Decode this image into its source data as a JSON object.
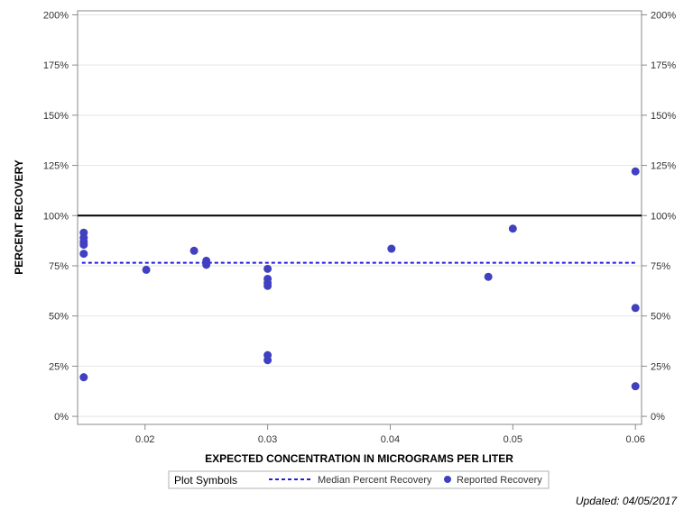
{
  "chart_data": {
    "type": "scatter",
    "title": "",
    "xlabel": "EXPECTED CONCENTRATION IN MICROGRAMS PER LITER",
    "ylabel": "PERCENT RECOVERY",
    "xlim": [
      0.0145,
      0.0605
    ],
    "ylim": [
      -4,
      202
    ],
    "x_ticks": [
      0.02,
      0.03,
      0.04,
      0.05,
      0.06
    ],
    "x_tick_labels": [
      "0.02",
      "0.03",
      "0.04",
      "0.05",
      "0.06"
    ],
    "y_ticks": [
      0,
      25,
      50,
      75,
      100,
      125,
      150,
      175,
      200
    ],
    "y_tick_labels": [
      "0%",
      "25%",
      "50%",
      "75%",
      "100%",
      "125%",
      "150%",
      "175%",
      "200%"
    ],
    "grid": true,
    "reference_line": {
      "value": 100,
      "color": "#000000"
    },
    "series": [
      {
        "name": "Median Percent Recovery",
        "kind": "line",
        "style": "dashed",
        "color": "#1f1fe0",
        "x": [
          0.015,
          0.06
        ],
        "values": [
          76.5,
          76.5
        ]
      },
      {
        "name": "Reported Recovery",
        "kind": "scatter",
        "color": "#4040c0",
        "points": [
          [
            0.015,
            91.5
          ],
          [
            0.015,
            89
          ],
          [
            0.015,
            87
          ],
          [
            0.015,
            85.5
          ],
          [
            0.015,
            81
          ],
          [
            0.015,
            19.5
          ],
          [
            0.0201,
            73
          ],
          [
            0.024,
            82.5
          ],
          [
            0.025,
            77.5
          ],
          [
            0.025,
            75.5
          ],
          [
            0.03,
            73.5
          ],
          [
            0.03,
            68.5
          ],
          [
            0.03,
            66.5
          ],
          [
            0.03,
            65
          ],
          [
            0.03,
            30.5
          ],
          [
            0.03,
            28
          ],
          [
            0.0401,
            83.5
          ],
          [
            0.048,
            69.5
          ],
          [
            0.05,
            93.5
          ],
          [
            0.06,
            122
          ],
          [
            0.06,
            54
          ],
          [
            0.06,
            15
          ]
        ]
      }
    ],
    "legend": {
      "title": "Plot Symbols",
      "placement": "bottom-center",
      "items": [
        "Median Percent Recovery",
        "Reported Recovery"
      ]
    }
  },
  "footnote": "Updated: 04/05/2017"
}
